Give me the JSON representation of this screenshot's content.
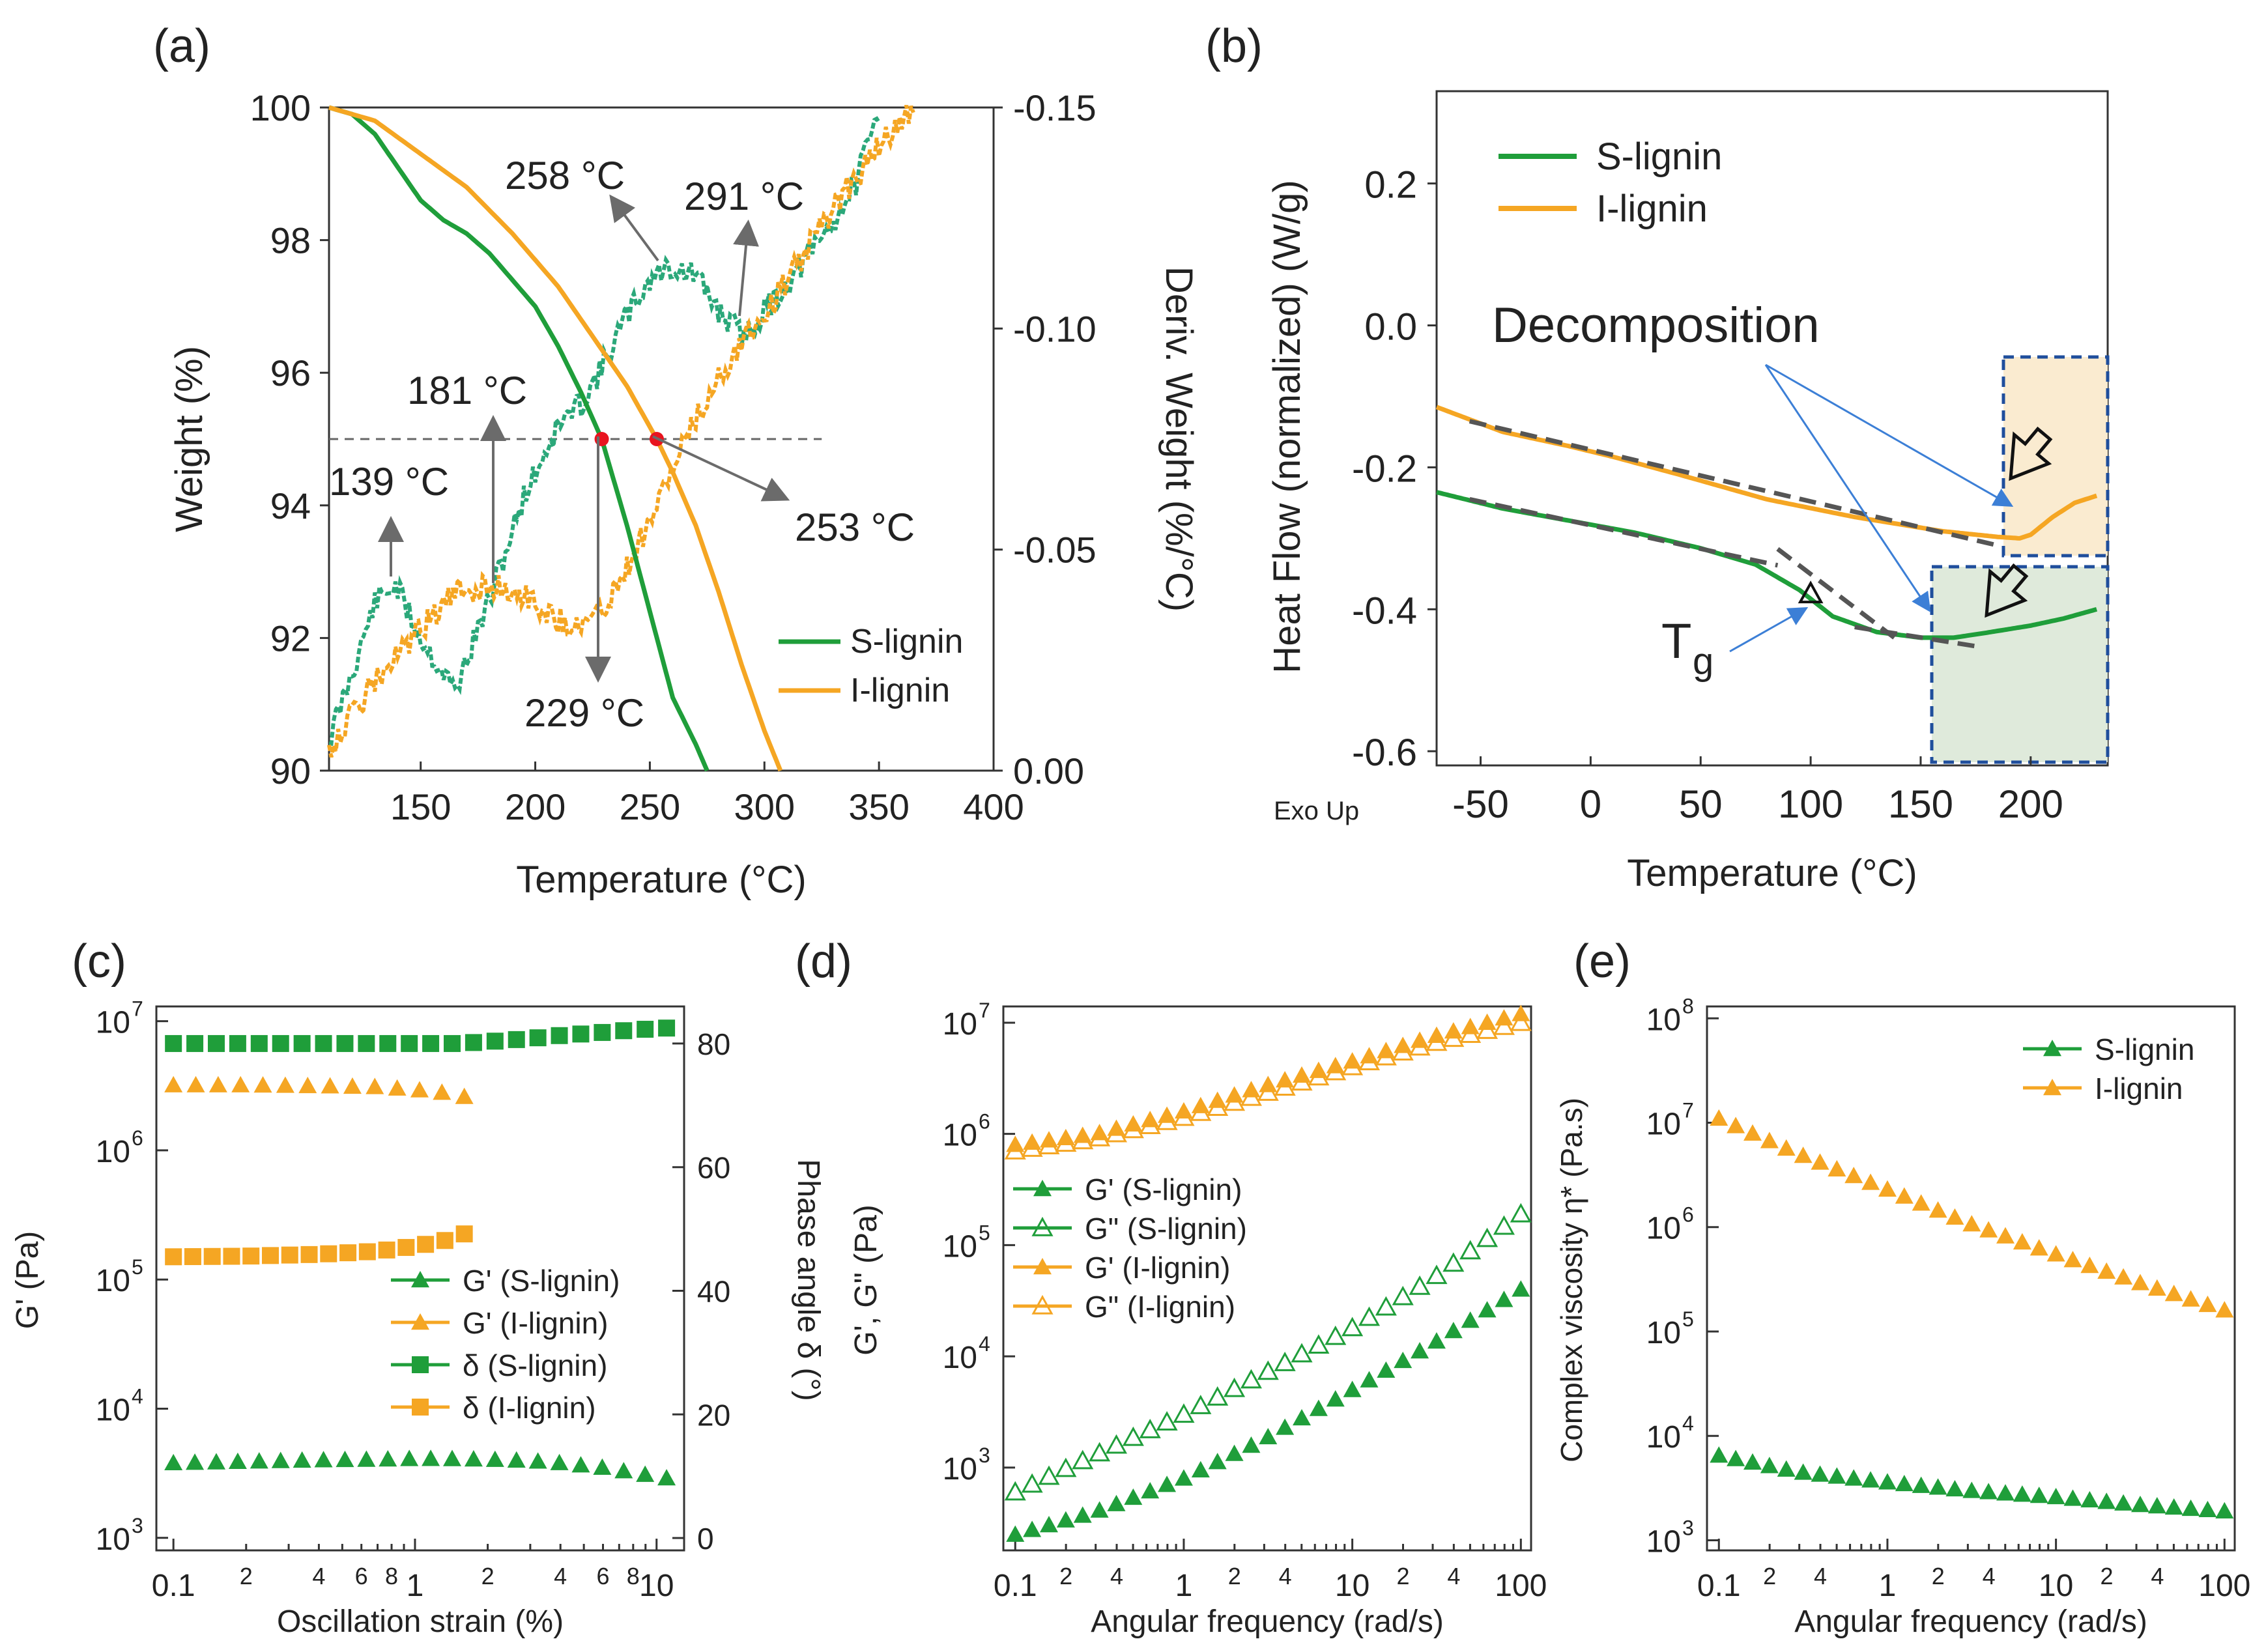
{
  "colors": {
    "s_lignin": "#1f9e3a",
    "i_lignin": "#f5a623",
    "s_deriv": "#2ba87a",
    "axis": "#333333",
    "arrow": "#6b6b6b",
    "point": "#e8141e"
  },
  "chart_data": [
    {
      "panel": "(a)",
      "type": "line",
      "xlabel": "Temperature (°C)",
      "ylabel": "Weight (%)",
      "y2label": "Deriv. Weight (%/°C)",
      "xlim": [
        110,
        400
      ],
      "ylim": [
        90,
        100
      ],
      "y2lim": [
        0.0,
        -0.15
      ],
      "xticks": [
        "150",
        "200",
        "250",
        "300",
        "350",
        "400"
      ],
      "yticks": [
        "90",
        "92",
        "94",
        "96",
        "98",
        "100"
      ],
      "y2ticks": [
        "0.00",
        "-0.05",
        "-0.10",
        "-0.15"
      ],
      "legend": [
        "S-lignin",
        "I-lignin"
      ],
      "reference_line_weight": 95,
      "series": [
        {
          "name": "S-lignin weight",
          "x": [
            110,
            120,
            130,
            140,
            150,
            160,
            170,
            180,
            190,
            200,
            210,
            220,
            229,
            240,
            250,
            260,
            270,
            275
          ],
          "y": [
            100,
            99.9,
            99.6,
            99.1,
            98.6,
            98.3,
            98.1,
            97.8,
            97.4,
            97.0,
            96.4,
            95.7,
            95.0,
            93.7,
            92.4,
            91.1,
            90.4,
            90
          ]
        },
        {
          "name": "I-lignin weight",
          "x": [
            110,
            130,
            150,
            170,
            190,
            210,
            230,
            240,
            253,
            260,
            270,
            280,
            290,
            300,
            307
          ],
          "y": [
            100,
            99.8,
            99.3,
            98.8,
            98.1,
            97.3,
            96.3,
            95.8,
            95.0,
            94.5,
            93.7,
            92.7,
            91.6,
            90.6,
            90
          ]
        },
        {
          "name": "S-lignin deriv",
          "x": [
            110,
            120,
            130,
            139,
            150,
            165,
            181,
            195,
            210,
            220,
            229,
            240,
            250,
            258,
            270,
            280,
            291,
            300,
            310,
            320,
            330,
            340,
            350
          ],
          "y": [
            -0.007,
            -0.022,
            -0.038,
            -0.042,
            -0.03,
            -0.018,
            -0.04,
            -0.062,
            -0.078,
            -0.083,
            -0.091,
            -0.103,
            -0.111,
            -0.114,
            -0.112,
            -0.104,
            -0.098,
            -0.104,
            -0.11,
            -0.117,
            -0.124,
            -0.133,
            -0.149
          ]
        },
        {
          "name": "I-lignin deriv",
          "x": [
            110,
            130,
            150,
            165,
            181,
            195,
            210,
            220,
            229,
            240,
            253,
            265,
            280,
            291,
            300,
            315,
            330,
            345,
            365
          ],
          "y": [
            -0.005,
            -0.02,
            -0.032,
            -0.04,
            -0.042,
            -0.04,
            -0.034,
            -0.033,
            -0.036,
            -0.046,
            -0.06,
            -0.074,
            -0.089,
            -0.098,
            -0.103,
            -0.115,
            -0.127,
            -0.138,
            -0.15
          ]
        }
      ],
      "annotations": [
        "139 °C",
        "181 °C",
        "258 °C",
        "291 °C",
        "229 °C",
        "253 °C"
      ]
    },
    {
      "panel": "(b)",
      "type": "line",
      "xlabel": "Temperature (°C)",
      "ylabel": "Heat Flow (normalized) (W/g)",
      "corner_label": "Exo Up",
      "xlim": [
        -70,
        235
      ],
      "ylim": [
        -0.62,
        0.33
      ],
      "xticks": [
        "-50",
        "0",
        "50",
        "100",
        "150",
        "200"
      ],
      "yticks": [
        "-0.6",
        "-0.4",
        "-0.2",
        "0.0",
        "0.2"
      ],
      "legend": [
        "S-lignin",
        "I-lignin"
      ],
      "series": [
        {
          "name": "S-lignin",
          "x": [
            -70,
            -40,
            -10,
            20,
            50,
            75,
            95,
            110,
            130,
            150,
            165,
            180,
            200,
            215,
            230
          ],
          "y": [
            -0.235,
            -0.258,
            -0.275,
            -0.292,
            -0.314,
            -0.337,
            -0.373,
            -0.41,
            -0.432,
            -0.44,
            -0.44,
            -0.433,
            -0.423,
            -0.413,
            -0.4
          ]
        },
        {
          "name": "I-lignin",
          "x": [
            -70,
            -40,
            -10,
            10,
            40,
            80,
            120,
            160,
            185,
            195,
            200,
            210,
            220,
            230
          ],
          "y": [
            -0.115,
            -0.15,
            -0.17,
            -0.185,
            -0.21,
            -0.245,
            -0.27,
            -0.29,
            -0.298,
            -0.3,
            -0.295,
            -0.27,
            -0.25,
            -0.24
          ]
        }
      ],
      "annotations": [
        "Decomposition",
        "T",
        "g"
      ]
    },
    {
      "panel": "(c)",
      "type": "scatter",
      "xlabel": "Oscillation strain (%)",
      "ylabel": "G' (Pa)",
      "y2label": "Phase angle δ (°)",
      "xscale": "log",
      "yscale": "log",
      "xlim": [
        0.085,
        13
      ],
      "ylim": [
        800,
        13000000
      ],
      "y2lim": [
        -2,
        86
      ],
      "xticks": [
        "0.1",
        "2",
        "4",
        "6",
        "8",
        "1",
        "2",
        "4",
        "6",
        "8",
        "10"
      ],
      "ytick_exponents": [
        "3",
        "4",
        "5",
        "6",
        "7"
      ],
      "y2ticks": [
        "0",
        "20",
        "40",
        "60",
        "80"
      ],
      "legend": [
        "G' (S-lignin)",
        "G' (I-lignin)",
        "δ (S-lignin)",
        "δ (I-lignin)"
      ],
      "series": [
        {
          "name": "G' (S-lignin)",
          "x": [
            0.1,
            0.2,
            0.4,
            0.7,
            1.0,
            1.3,
            2,
            3,
            4,
            6,
            8,
            11
          ],
          "y": [
            3800,
            3900,
            4000,
            4050,
            4100,
            4100,
            4050,
            3950,
            3800,
            3500,
            3200,
            2900
          ]
        },
        {
          "name": "G' (I-lignin)",
          "x": [
            0.1,
            0.2,
            0.4,
            0.7,
            1.0,
            1.3,
            1.6
          ],
          "y": [
            3200000,
            3200000,
            3150000,
            3100000,
            2950000,
            2800000,
            2600000
          ]
        },
        {
          "name": "δ (S-lignin)",
          "x": [
            0.1,
            0.2,
            0.4,
            0.7,
            1.0,
            1.5,
            2,
            3,
            4,
            6,
            8,
            11
          ],
          "y": [
            80,
            80,
            80,
            80,
            80,
            80,
            80.3,
            80.8,
            81.3,
            81.8,
            82.2,
            82.5
          ]
        },
        {
          "name": "δ (I-lignin)",
          "x": [
            0.1,
            0.2,
            0.4,
            0.7,
            1.0,
            1.3,
            1.6
          ],
          "y": [
            45.5,
            45.6,
            45.9,
            46.4,
            47.2,
            48.0,
            49.2
          ]
        }
      ]
    },
    {
      "panel": "(d)",
      "type": "scatter",
      "xlabel": "Angular frequency (rad/s)",
      "ylabel": "G', G\" (Pa)",
      "xscale": "log",
      "yscale": "log",
      "xlim": [
        0.085,
        115
      ],
      "ylim": [
        180,
        14000000
      ],
      "xticks": [
        "0.1",
        "2",
        "4",
        "1",
        "2",
        "4",
        "10",
        "2",
        "4",
        "100"
      ],
      "ytick_exponents": [
        "3",
        "4",
        "5",
        "6",
        "7"
      ],
      "legend": [
        "G' (S-lignin)",
        "G\" (S-lignin)",
        "G' (I-lignin)",
        "G\" (I-lignin)"
      ],
      "series": [
        {
          "name": "G' (S-lignin)",
          "x": [
            0.1,
            0.3,
            1,
            3,
            10,
            30,
            100
          ],
          "y": [
            250,
            400,
            800,
            1800,
            5000,
            13000,
            40000
          ]
        },
        {
          "name": "G\" (S-lignin)",
          "x": [
            0.1,
            0.3,
            1,
            3,
            10,
            30,
            100
          ],
          "y": [
            600,
            1300,
            3000,
            7000,
            18000,
            50000,
            190000
          ]
        },
        {
          "name": "G' (I-lignin)",
          "x": [
            0.1,
            0.3,
            1,
            3,
            10,
            30,
            100
          ],
          "y": [
            800000,
            1000000,
            1600000,
            2700000,
            4500000,
            7500000,
            12000000
          ]
        },
        {
          "name": "G\" (I-lignin)",
          "x": [
            0.1,
            0.3,
            1,
            3,
            10,
            30,
            100
          ],
          "y": [
            700000,
            900000,
            1400000,
            2300000,
            4000000,
            6500000,
            10000000
          ]
        }
      ]
    },
    {
      "panel": "(e)",
      "type": "scatter",
      "xlabel": "Angular frequency (rad/s)",
      "ylabel": "Complex viscosity η* (Pa.s)",
      "xscale": "log",
      "yscale": "log",
      "xlim": [
        0.085,
        115
      ],
      "ylim": [
        800,
        130000000
      ],
      "xticks": [
        "0.1",
        "2",
        "4",
        "1",
        "2",
        "4",
        "10",
        "2",
        "4",
        "100"
      ],
      "ytick_exponents": [
        "3",
        "4",
        "5",
        "6",
        "7",
        "8"
      ],
      "legend": [
        "S-lignin",
        "I-lignin"
      ],
      "series": [
        {
          "name": "S-lignin",
          "x": [
            0.1,
            0.3,
            1,
            3,
            10,
            30,
            100
          ],
          "y": [
            6500,
            4500,
            3600,
            3000,
            2600,
            2200,
            1900
          ]
        },
        {
          "name": "I-lignin",
          "x": [
            0.1,
            0.3,
            1,
            3,
            10,
            30,
            100
          ],
          "y": [
            11000000,
            5000000,
            2300000,
            1100000,
            550000,
            300000,
            160000
          ]
        }
      ]
    }
  ]
}
